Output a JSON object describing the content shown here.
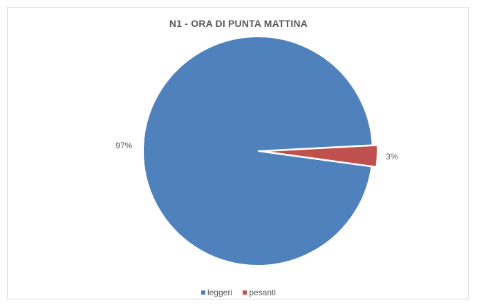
{
  "chart_data": {
    "type": "pie",
    "title": "N1 - ORA DI PUNTA MATTINA",
    "categories": [
      "leggeri",
      "pesanti"
    ],
    "values": [
      97,
      3
    ],
    "data_labels": [
      "97%",
      "3%"
    ],
    "colors": [
      "#4f81bd",
      "#c0504d"
    ],
    "legend": "bottom",
    "exploded_slice": "pesanti"
  }
}
